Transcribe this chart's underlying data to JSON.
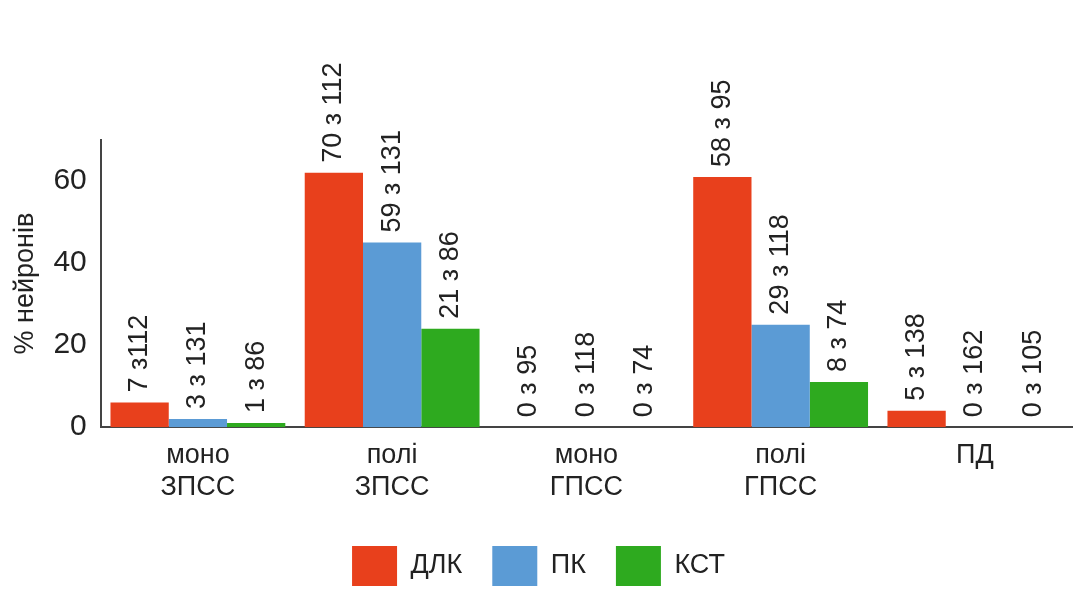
{
  "chart_data": {
    "type": "bar",
    "ylabel": "% нейронів",
    "categories": [
      "моно ЗПСС",
      "полі ЗПСС",
      "моно ГПСС",
      "полі ГПСС",
      "ПД"
    ],
    "series": [
      {
        "name": "ДЛК",
        "color": "#e8401c",
        "values": [
          6,
          62,
          0,
          61,
          4
        ]
      },
      {
        "name": "ПК",
        "color": "#5b9bd5",
        "values": [
          2,
          45,
          0,
          25,
          0
        ]
      },
      {
        "name": "КСТ",
        "color": "#2eaa1f",
        "values": [
          1,
          24,
          0,
          11,
          0
        ]
      }
    ],
    "annotations": [
      "7 з112",
      "3 з 131",
      "1 з 86",
      "70 з 112",
      "59 з 131",
      "21 з 86",
      "0 з 95",
      "0 з 118",
      "0 з 74",
      "58 з 95",
      "29 з 118",
      "8 з 74",
      "5 з 138",
      "0 з 162",
      "0 з 105"
    ],
    "ylim": [
      0,
      70
    ],
    "yticks": [
      0,
      20,
      40,
      60
    ],
    "grid": false,
    "legend": "bottom"
  }
}
